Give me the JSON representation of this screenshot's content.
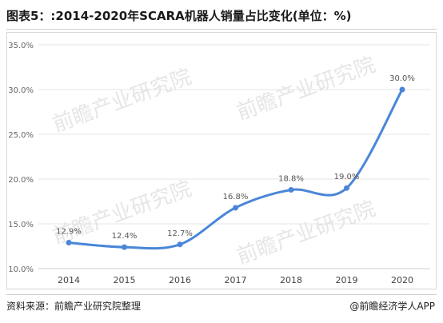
{
  "title": "图表5：:2014-2020年SCARA机器人销量占比变化(单位：%)",
  "footer": {
    "source": "资料来源：前瞻产业研究院整理",
    "credit": "@前瞻经济学人APP"
  },
  "watermark": "前瞻产业研究院",
  "chart_data": {
    "type": "line",
    "title": "图表5：:2014-2020年SCARA机器人销量占比变化(单位：%)",
    "xlabel": "",
    "ylabel": "",
    "categories": [
      "2014",
      "2015",
      "2016",
      "2017",
      "2018",
      "2019",
      "2020"
    ],
    "values": [
      12.9,
      12.4,
      12.7,
      16.8,
      18.8,
      19.0,
      30.0
    ],
    "value_labels": [
      "12.9%",
      "12.4%",
      "12.7%",
      "16.8%",
      "18.8%",
      "19.0%",
      "30.0%"
    ],
    "ylim": [
      10,
      35
    ],
    "yticks": [
      10,
      15,
      20,
      25,
      30,
      35
    ],
    "ytick_labels": [
      "10.0%",
      "15.0%",
      "20.0%",
      "25.0%",
      "30.0%",
      "35.0%"
    ],
    "grid": true,
    "smooth": true,
    "legend": "none",
    "line_color": "#4a86d8"
  }
}
